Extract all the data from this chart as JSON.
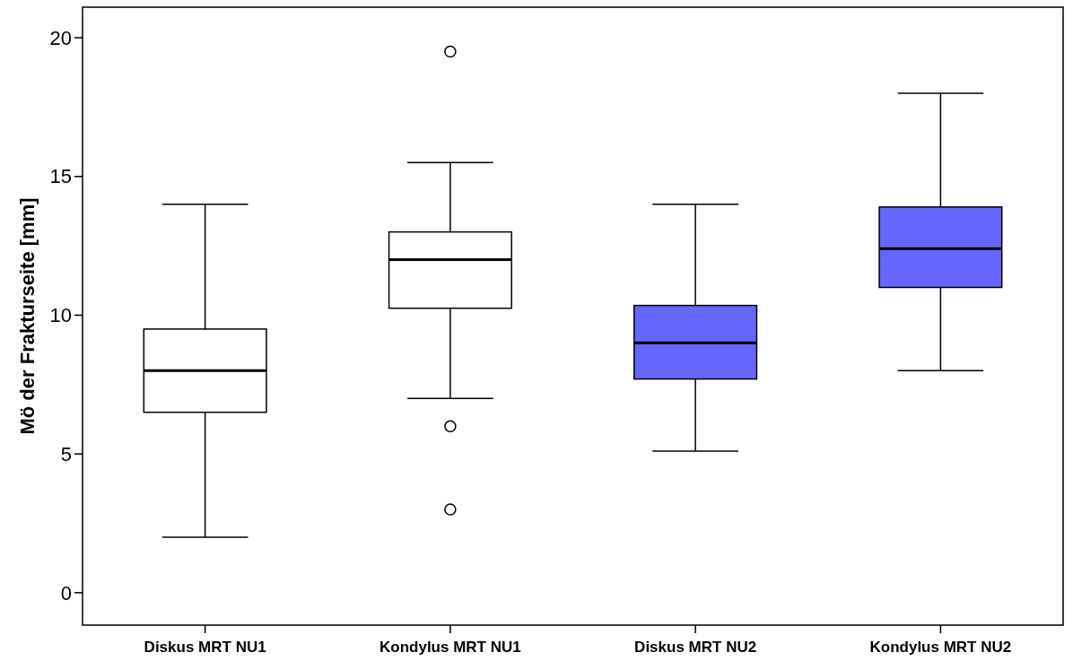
{
  "chart_data": {
    "type": "box",
    "ylabel": "Mö der Frakturseite [mm]",
    "categories": [
      "Diskus MRT NU1",
      "Kondylus MRT NU1",
      "Diskus MRT NU2",
      "Kondylus MRT NU2"
    ],
    "boxes": [
      {
        "low": 2,
        "q1": 6.5,
        "median": 8,
        "q3": 9.5,
        "high": 14
      },
      {
        "low": 7,
        "q1": 10.25,
        "median": 12,
        "q3": 13,
        "high": 15.5,
        "outliers": [
          19.5,
          6,
          3
        ]
      },
      {
        "low": 5.1,
        "q1": 7.7,
        "median": 9,
        "q3": 10.35,
        "high": 14
      },
      {
        "low": 8,
        "q1": 11,
        "median": 12.4,
        "q3": 13.9,
        "high": 18
      }
    ],
    "colors": [
      "#ffffff",
      "#ffffff",
      "#6666ff",
      "#6666ff"
    ],
    "ylim": [
      -1.17,
      21.1
    ],
    "yticks": [
      0,
      5,
      10,
      15,
      20
    ],
    "grid": false
  }
}
